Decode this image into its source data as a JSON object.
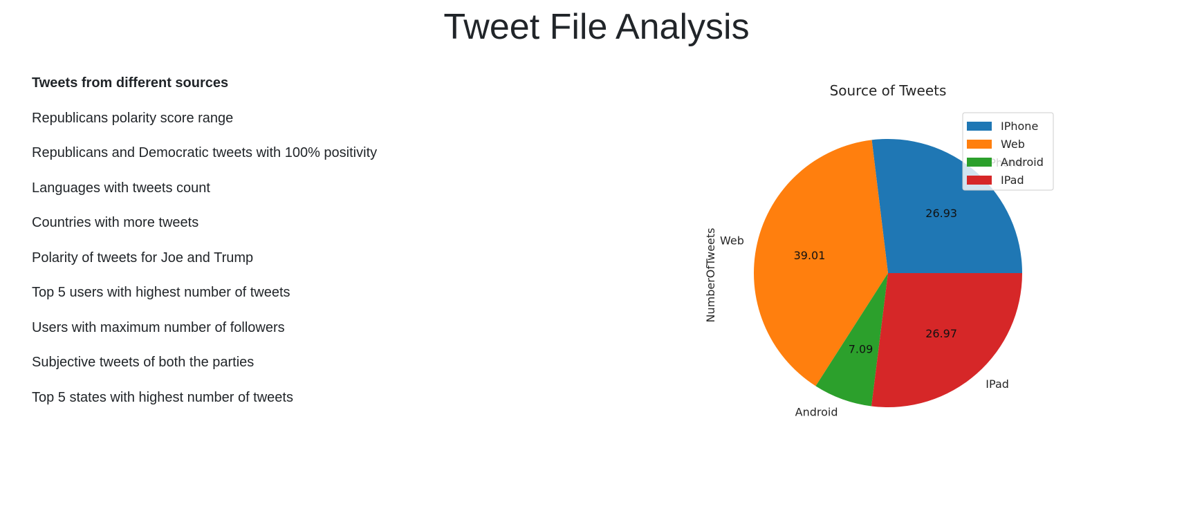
{
  "page": {
    "title": "Tweet File Analysis"
  },
  "menu": {
    "items": [
      {
        "label": "Tweets from different sources",
        "active": true
      },
      {
        "label": "Republicans polarity score range",
        "active": false
      },
      {
        "label": "Republicans and Democratic tweets with 100% positivity",
        "active": false
      },
      {
        "label": "Languages with tweets count",
        "active": false
      },
      {
        "label": "Countries with more tweets",
        "active": false
      },
      {
        "label": "Polarity of tweets for Joe and Trump",
        "active": false
      },
      {
        "label": "Top 5 users with highest number of tweets",
        "active": false
      },
      {
        "label": "Users with maximum number of followers",
        "active": false
      },
      {
        "label": "Subjective tweets of both the parties",
        "active": false
      },
      {
        "label": "Top 5 states with highest number of tweets",
        "active": false
      }
    ]
  },
  "chart_data": {
    "type": "pie",
    "title": "Source of Tweets",
    "ylabel": "NumberOfTweets",
    "categories": [
      "IPhone",
      "Web",
      "Android",
      "IPad"
    ],
    "values": [
      26.93,
      39.01,
      7.09,
      26.97
    ],
    "value_labels": [
      "26.93",
      "39.01",
      "7.09",
      "26.97"
    ],
    "colors": [
      "#1f77b4",
      "#ff7f0e",
      "#2ca02c",
      "#d62728"
    ],
    "start_angle_deg": 0,
    "direction": "counterclockwise",
    "legend": {
      "placement": "upper-right",
      "entries": [
        "IPhone",
        "Web",
        "Android",
        "IPad"
      ]
    }
  }
}
